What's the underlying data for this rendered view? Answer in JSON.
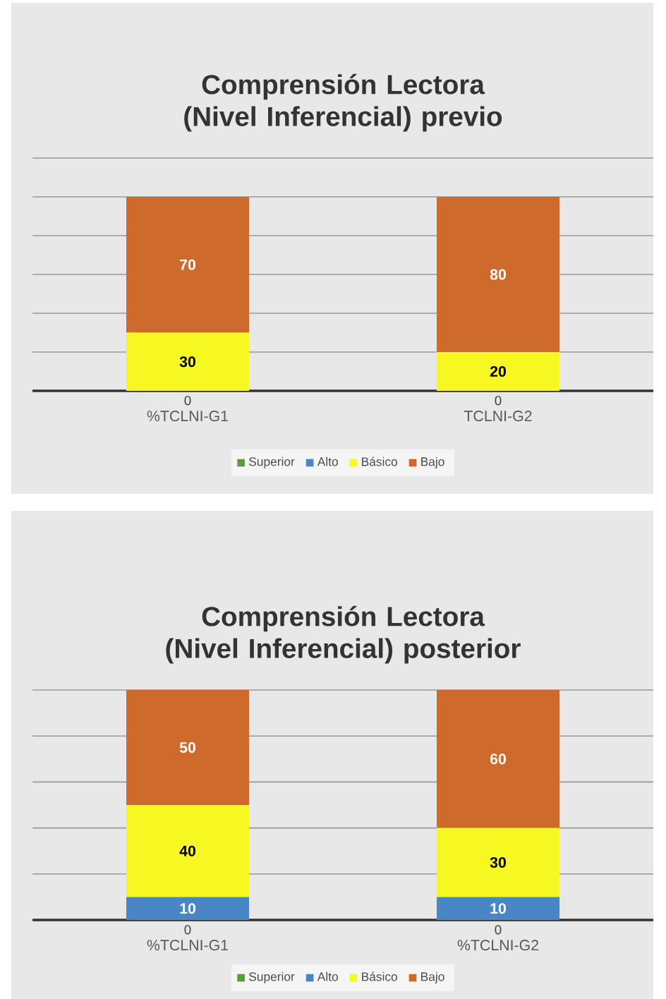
{
  "chart_data": [
    {
      "type": "bar",
      "title": "Comprensión Lectora (Nivel Inferencial) previo",
      "categories": [
        "%TCLNI-G1",
        "TCLNI-G2"
      ],
      "stacked": true,
      "ylim": [
        0,
        120
      ],
      "yticks": [
        {
          "value": 0,
          "label": null
        },
        {
          "value": 20,
          "label": null
        },
        {
          "value": 40,
          "label": null
        },
        {
          "value": 60,
          "label": null
        },
        {
          "value": 80,
          "label": null
        },
        {
          "value": 100,
          "label": null
        },
        {
          "value": 120,
          "label": null
        }
      ],
      "tick_labels": "x",
      "grid": "y",
      "legend": "bottom",
      "series": [
        {
          "name": "Superior",
          "color": "#5b9b3f",
          "values": [
            0,
            0
          ],
          "value_labels": [
            "0",
            "0"
          ]
        },
        {
          "name": "Alto",
          "color": "#4a86c5",
          "values": [
            0,
            0
          ],
          "value_labels": [
            null,
            null
          ]
        },
        {
          "name": "Básico",
          "color": "#f7f722",
          "values": [
            30,
            20
          ],
          "value_labels": [
            "30",
            "20"
          ]
        },
        {
          "name": "Bajo",
          "color": "#cd6a2c",
          "values": [
            70,
            80
          ],
          "value_labels": [
            "70",
            "80"
          ]
        }
      ]
    },
    {
      "type": "bar",
      "title": "Comprensión Lectora (Nivel Inferencial) posterior",
      "categories": [
        "%TCLNI-G1",
        "%TCLNI-G2"
      ],
      "stacked": true,
      "ylim": [
        0,
        100
      ],
      "yticks": [
        {
          "value": 0,
          "label": null
        },
        {
          "value": 20,
          "label": null
        },
        {
          "value": 40,
          "label": null
        },
        {
          "value": 60,
          "label": null
        },
        {
          "value": 80,
          "label": null
        },
        {
          "value": 100,
          "label": null
        }
      ],
      "tick_labels": "x",
      "grid": "y",
      "legend": "bottom",
      "series": [
        {
          "name": "Superior",
          "color": "#5b9b3f",
          "values": [
            0,
            0
          ],
          "value_labels": [
            "0",
            "0"
          ]
        },
        {
          "name": "Alto",
          "color": "#4a86c5",
          "values": [
            10,
            10
          ],
          "value_labels": [
            "10",
            "10"
          ]
        },
        {
          "name": "Básico",
          "color": "#f7f722",
          "values": [
            40,
            30
          ],
          "value_labels": [
            "40",
            "30"
          ]
        },
        {
          "name": "Bajo",
          "color": "#cd6a2c",
          "values": [
            50,
            60
          ],
          "value_labels": [
            "50",
            "60"
          ]
        }
      ]
    }
  ]
}
